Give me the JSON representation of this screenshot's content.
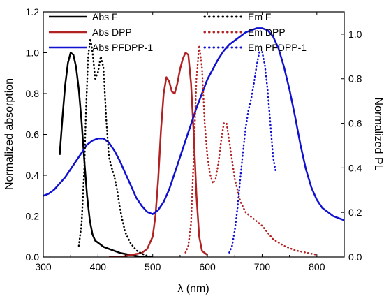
{
  "chart_data": {
    "type": "line",
    "xlabel": "λ (nm)",
    "ylabel_left": "Normalized absorption",
    "ylabel_right": "Normalized PL",
    "xlim": [
      300,
      850
    ],
    "ylim_left": [
      0,
      1.2
    ],
    "ylim_right": [
      0,
      1.1
    ],
    "x_ticks": [
      "300",
      "400",
      "500",
      "600",
      "700",
      "800"
    ],
    "y_left_ticks": [
      "0.0",
      "0.2",
      "0.4",
      "0.6",
      "0.8",
      "1.0",
      "1.2"
    ],
    "y_right_ticks": [
      "0.0",
      "0.2",
      "0.4",
      "0.6",
      "0.8",
      "1.0"
    ],
    "grid": false,
    "legend_placement": "top",
    "colors": {
      "black": "#000000",
      "brown": "#b22222",
      "blue": "#1010d0"
    },
    "series": [
      {
        "name": "Abs F",
        "axis": "left",
        "style": "solid",
        "color": "#000000",
        "x": [
          330,
          335,
          340,
          345,
          350,
          355,
          360,
          365,
          370,
          375,
          380,
          385,
          390,
          395,
          400,
          405,
          410,
          420,
          430,
          440,
          450,
          460,
          470,
          480,
          490,
          500
        ],
        "y": [
          0.5,
          0.68,
          0.84,
          0.95,
          1.0,
          0.99,
          0.93,
          0.82,
          0.66,
          0.47,
          0.3,
          0.18,
          0.11,
          0.08,
          0.07,
          0.06,
          0.05,
          0.04,
          0.03,
          0.02,
          0.015,
          0.01,
          0.005,
          0.0,
          0.0,
          0.0
        ]
      },
      {
        "name": "Abs DPP",
        "axis": "left",
        "style": "solid",
        "color": "#b22222",
        "x": [
          420,
          440,
          460,
          480,
          490,
          500,
          505,
          510,
          515,
          520,
          525,
          530,
          535,
          540,
          545,
          550,
          555,
          560,
          565,
          570,
          575,
          580,
          585,
          590,
          600
        ],
        "y": [
          0.0,
          0.0,
          0.01,
          0.02,
          0.04,
          0.1,
          0.2,
          0.38,
          0.62,
          0.8,
          0.88,
          0.86,
          0.81,
          0.8,
          0.85,
          0.92,
          0.97,
          1.0,
          0.99,
          0.85,
          0.6,
          0.3,
          0.1,
          0.03,
          0.01
        ]
      },
      {
        "name": "Abs PFDPP-1",
        "axis": "left",
        "style": "solid",
        "color": "#1010d0",
        "x": [
          300,
          310,
          320,
          330,
          340,
          350,
          360,
          370,
          380,
          390,
          400,
          410,
          420,
          430,
          440,
          450,
          460,
          470,
          480,
          490,
          500,
          510,
          520,
          530,
          540,
          550,
          560,
          570,
          580,
          590,
          600,
          610,
          620,
          630,
          640,
          650,
          660,
          670,
          680,
          690,
          700,
          710,
          720,
          730,
          740,
          750,
          760,
          770,
          780,
          790,
          800,
          810,
          820,
          830,
          840,
          850
        ],
        "y": [
          0.3,
          0.31,
          0.33,
          0.36,
          0.39,
          0.43,
          0.47,
          0.51,
          0.55,
          0.57,
          0.58,
          0.58,
          0.56,
          0.52,
          0.47,
          0.41,
          0.35,
          0.29,
          0.25,
          0.22,
          0.21,
          0.23,
          0.27,
          0.33,
          0.41,
          0.49,
          0.57,
          0.65,
          0.73,
          0.8,
          0.87,
          0.92,
          0.97,
          1.01,
          1.04,
          1.06,
          1.08,
          1.1,
          1.11,
          1.12,
          1.12,
          1.11,
          1.08,
          1.02,
          0.93,
          0.82,
          0.69,
          0.55,
          0.43,
          0.34,
          0.28,
          0.24,
          0.22,
          0.2,
          0.19,
          0.18
        ]
      },
      {
        "name": "Em F",
        "axis": "right",
        "style": "dotted",
        "color": "#000000",
        "x": [
          365,
          370,
          375,
          378,
          382,
          386,
          390,
          395,
          400,
          405,
          410,
          415,
          420,
          425,
          430,
          435,
          440,
          445,
          450,
          460,
          470,
          480,
          490,
          500
        ],
        "y": [
          0.05,
          0.15,
          0.4,
          0.65,
          0.9,
          0.98,
          0.92,
          0.8,
          0.83,
          0.9,
          0.85,
          0.62,
          0.45,
          0.4,
          0.36,
          0.3,
          0.22,
          0.16,
          0.11,
          0.06,
          0.03,
          0.015,
          0.005,
          0.0
        ]
      },
      {
        "name": "Em DPP",
        "axis": "right",
        "style": "dotted",
        "color": "#b22222",
        "x": [
          560,
          565,
          570,
          575,
          580,
          585,
          590,
          595,
          600,
          605,
          610,
          615,
          620,
          625,
          630,
          635,
          640,
          650,
          660,
          670,
          680,
          690,
          700,
          710,
          720,
          740,
          760,
          780,
          800
        ],
        "y": [
          0.02,
          0.05,
          0.15,
          0.45,
          0.8,
          0.95,
          0.85,
          0.6,
          0.45,
          0.37,
          0.33,
          0.35,
          0.42,
          0.52,
          0.6,
          0.6,
          0.52,
          0.35,
          0.25,
          0.2,
          0.18,
          0.16,
          0.14,
          0.11,
          0.08,
          0.05,
          0.03,
          0.02,
          0.01
        ]
      },
      {
        "name": "Em PFDPP-1",
        "axis": "right",
        "style": "dotted",
        "color": "#1010d0",
        "x": [
          640,
          645,
          650,
          655,
          660,
          665,
          670,
          675,
          680,
          685,
          690,
          695,
          700,
          705,
          710,
          715,
          720,
          725
        ],
        "y": [
          0.02,
          0.05,
          0.12,
          0.22,
          0.35,
          0.47,
          0.58,
          0.66,
          0.71,
          0.78,
          0.86,
          0.92,
          0.92,
          0.86,
          0.75,
          0.6,
          0.45,
          0.38
        ]
      }
    ]
  }
}
